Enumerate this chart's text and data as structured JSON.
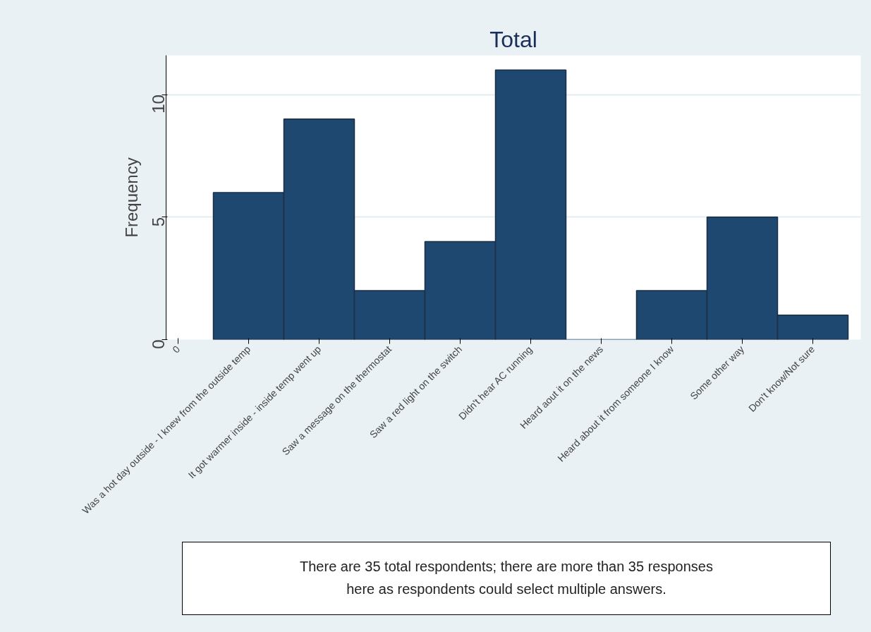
{
  "chart_data": {
    "type": "bar",
    "title": "Total",
    "ylabel": "Frequency",
    "categories": [
      "0",
      "Was a hot day outside - I knew from the outside temp",
      "It got warmer inside - inside temp went up",
      "Saw a message on the thermostat",
      "Saw a red light on the switch",
      "Didn't hear AC running",
      "Heard aout it on the news",
      "Heard about it from someone I know",
      "Some other way",
      "Don't know/Not sure"
    ],
    "values": [
      null,
      6,
      9,
      2,
      4,
      11,
      0,
      2,
      5,
      1
    ],
    "color": "#1e4870",
    "ylim": [
      0,
      11.6
    ],
    "yticks": [
      0,
      5,
      10
    ],
    "grid": "y",
    "annotations": [
      "There are 35 total respondents; there are more than 35 responses\nhere as respondents could select multiple answers."
    ]
  }
}
